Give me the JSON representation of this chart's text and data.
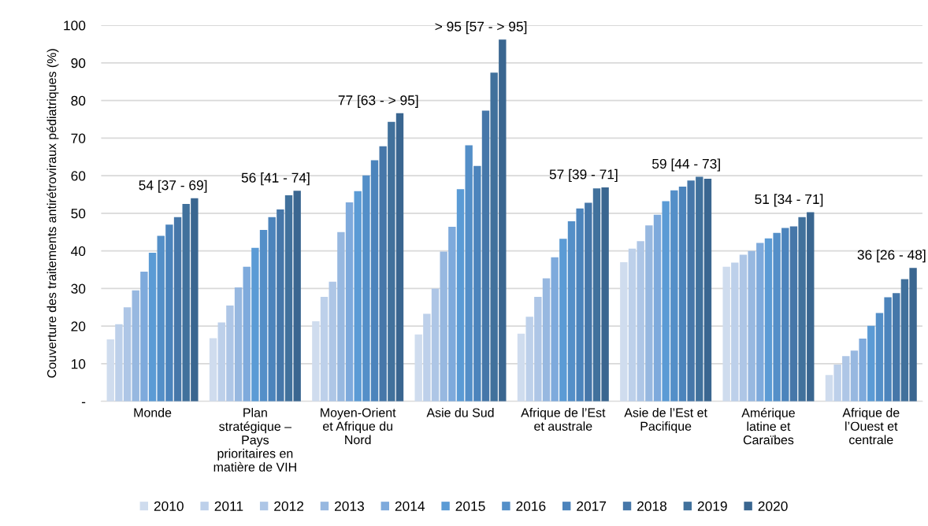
{
  "chart_data": {
    "type": "bar",
    "ylabel": "Couverture des traitements antirétroviraux pédiatriques (%)",
    "categories": [
      "Monde",
      "Plan\nstratégique –\nPays\nprioritaires en\nmatière de VIH",
      "Moyen-Orient\net Afrique du\nNord",
      "Asie du Sud",
      "Afrique de l’Est\net australe",
      "Asie de l’Est et\nPacifique",
      "Amérique\nlatine et\nCaraïbes",
      "Afrique de\nl’Ouest et\ncentrale"
    ],
    "series": [
      {
        "name": "2010",
        "color": "#cfdcee",
        "values": [
          16.5,
          16.8,
          21.3,
          17.8,
          18,
          37,
          35.8,
          7
        ]
      },
      {
        "name": "2011",
        "color": "#bdd0ea",
        "values": [
          20.5,
          21,
          27.8,
          23.3,
          22.5,
          40.6,
          36.9,
          9.8
        ]
      },
      {
        "name": "2012",
        "color": "#aec6e6",
        "values": [
          25,
          25.5,
          31.8,
          30,
          27.8,
          42.6,
          39,
          12
        ]
      },
      {
        "name": "2013",
        "color": "#97b8e0",
        "values": [
          29.5,
          30.3,
          45,
          39.8,
          32.7,
          46.8,
          40,
          13.5
        ]
      },
      {
        "name": "2014",
        "color": "#7eaadc",
        "values": [
          34.5,
          35.8,
          52.9,
          46.4,
          38.3,
          49.6,
          42.1,
          16.7
        ]
      },
      {
        "name": "2015",
        "color": "#5b9bd5",
        "values": [
          39.5,
          40.8,
          55.9,
          56.4,
          43.2,
          53.2,
          43.3,
          20.1
        ]
      },
      {
        "name": "2016",
        "color": "#548fc8",
        "values": [
          44,
          45.6,
          60.1,
          68.1,
          47.9,
          56.1,
          44.8,
          23.5
        ]
      },
      {
        "name": "2017",
        "color": "#4c84bc",
        "values": [
          47,
          49,
          64.1,
          62.6,
          51.3,
          57.1,
          46.1,
          27.7
        ]
      },
      {
        "name": "2018",
        "color": "#4677a9",
        "values": [
          49,
          51,
          67.8,
          77.3,
          52.8,
          58.7,
          46.5,
          28.8
        ]
      },
      {
        "name": "2019",
        "color": "#41719c",
        "values": [
          52.5,
          54.8,
          74.3,
          87.4,
          56.6,
          59.7,
          49,
          32.5
        ]
      },
      {
        "name": "2020",
        "color": "#3a6690",
        "values": [
          54,
          56,
          76.6,
          96.2,
          56.9,
          59.2,
          50.3,
          35.5
        ]
      }
    ],
    "ylim": [
      0,
      100
    ],
    "yticks": [
      {
        "value": 0,
        "label": "-"
      },
      10,
      20,
      30,
      40,
      50,
      60,
      70,
      80,
      90,
      100
    ],
    "grid": "y",
    "legend": "bottom",
    "annotations": [
      "54 [37 - 69]",
      "56 [41 - 74]",
      "77 [63 - > 95]",
      "> 95 [57 - > 95]",
      "57 [39 - 71]",
      "59 [44 - 73]",
      "51 [34 - 71]",
      "36 [26 - 48]"
    ]
  }
}
